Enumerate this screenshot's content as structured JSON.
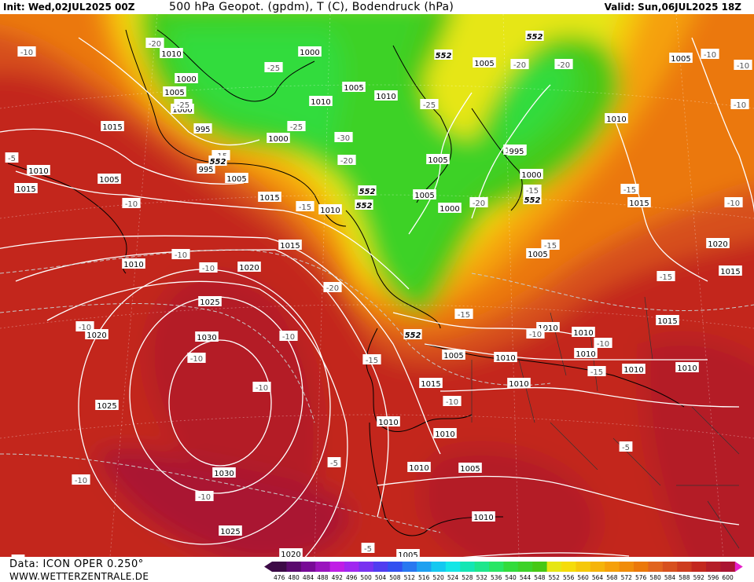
{
  "header": {
    "init": "Init: Wed,02JUL2025 00Z",
    "title": "500 hPa Geopot. (gpdm), T (C), Bodendruck (hPa)",
    "valid": "Valid: Sun,06JUL2025 18Z"
  },
  "footer": {
    "data_source": "Data: ICON OPER 0.250°",
    "website": "WWW.WETTERZENTRALE.DE"
  },
  "legend": {
    "values": [
      "476",
      "480",
      "484",
      "488",
      "492",
      "496",
      "500",
      "504",
      "508",
      "512",
      "516",
      "520",
      "524",
      "528",
      "532",
      "536",
      "540",
      "544",
      "548",
      "552",
      "556",
      "560",
      "564",
      "568",
      "572",
      "576",
      "580",
      "584",
      "588",
      "592",
      "596",
      "600"
    ],
    "colors": [
      "#3c0a46",
      "#5a0a6e",
      "#780a96",
      "#9a14be",
      "#c01ee6",
      "#a028f0",
      "#7832f0",
      "#503cf0",
      "#3250f0",
      "#2878f0",
      "#1ea0f0",
      "#14c8f0",
      "#14e6e6",
      "#14e6b4",
      "#1ee68c",
      "#28e664",
      "#32dc3c",
      "#3cd228",
      "#46c814",
      "#e6e614",
      "#f5dc0a",
      "#f5c80a",
      "#f5b40a",
      "#f5a00a",
      "#f08c0a",
      "#eb780a",
      "#e1641e",
      "#d7501e",
      "#cd3c1e",
      "#c3281e",
      "#b41e28",
      "#aa1432"
    ]
  },
  "map": {
    "isobar_labels": [
      {
        "t": "1010"
      },
      {
        "t": "1000"
      },
      {
        "t": "1005"
      },
      {
        "t": "1000"
      },
      {
        "t": "995"
      },
      {
        "t": "1015"
      },
      {
        "t": "1010"
      },
      {
        "t": "1015"
      },
      {
        "t": "1005"
      },
      {
        "t": "995"
      },
      {
        "t": "1000"
      },
      {
        "t": "1005"
      },
      {
        "t": "1000"
      },
      {
        "t": "1010"
      },
      {
        "t": "1005"
      },
      {
        "t": "1010"
      },
      {
        "t": "1015"
      },
      {
        "t": "1010"
      },
      {
        "t": "1015"
      },
      {
        "t": "1020"
      },
      {
        "t": "1025"
      },
      {
        "t": "1030"
      },
      {
        "t": "1020"
      },
      {
        "t": "1025"
      },
      {
        "t": "1030"
      },
      {
        "t": "1025"
      },
      {
        "t": "1020"
      },
      {
        "t": "1010"
      },
      {
        "t": "1005"
      },
      {
        "t": "1000"
      },
      {
        "t": "1005"
      },
      {
        "t": "1000"
      },
      {
        "t": "995"
      },
      {
        "t": "1000"
      },
      {
        "t": "1005"
      },
      {
        "t": "1010"
      },
      {
        "t": "1005"
      },
      {
        "t": "1010"
      },
      {
        "t": "1015"
      },
      {
        "t": "1005"
      },
      {
        "t": "1015"
      },
      {
        "t": "1020"
      },
      {
        "t": "1015"
      },
      {
        "t": "1005"
      },
      {
        "t": "1010"
      },
      {
        "t": "1010"
      },
      {
        "t": "1015"
      },
      {
        "t": "1010"
      },
      {
        "t": "1010"
      },
      {
        "t": "1010"
      },
      {
        "t": "1010"
      },
      {
        "t": "1005"
      },
      {
        "t": "1010"
      },
      {
        "t": "1010"
      },
      {
        "t": "1010"
      },
      {
        "t": "1010"
      },
      {
        "t": "1005"
      }
    ],
    "temperature_labels": [
      {
        "t": "-10"
      },
      {
        "t": "-20"
      },
      {
        "t": "-25"
      },
      {
        "t": "-25"
      },
      {
        "t": "-25"
      },
      {
        "t": "-30"
      },
      {
        "t": "-15"
      },
      {
        "t": "-20"
      },
      {
        "t": "-25"
      },
      {
        "t": "-20"
      },
      {
        "t": "-20"
      },
      {
        "t": "-20"
      },
      {
        "t": "-10"
      },
      {
        "t": "-10"
      },
      {
        "t": "-15"
      },
      {
        "t": "-10"
      },
      {
        "t": "-10"
      },
      {
        "t": "-20"
      },
      {
        "t": "-15"
      },
      {
        "t": "-15"
      },
      {
        "t": "-10"
      },
      {
        "t": "-10"
      },
      {
        "t": "-10"
      },
      {
        "t": "-10"
      },
      {
        "t": "-15"
      },
      {
        "t": "-10"
      },
      {
        "t": "-10"
      },
      {
        "t": "-5"
      },
      {
        "t": "-10"
      },
      {
        "t": "-5"
      },
      {
        "t": "-15"
      },
      {
        "t": "-15"
      },
      {
        "t": "-10"
      },
      {
        "t": "-15"
      },
      {
        "t": "-10"
      },
      {
        "t": "-15"
      },
      {
        "t": "-5"
      },
      {
        "t": "-5"
      },
      {
        "t": "-10"
      },
      {
        "t": "-10"
      },
      {
        "t": "-10"
      },
      {
        "t": "-5"
      }
    ],
    "geopotential_labels": [
      {
        "t": "552"
      },
      {
        "t": "552"
      },
      {
        "t": "552"
      },
      {
        "t": "552"
      },
      {
        "t": "552"
      },
      {
        "t": "552"
      },
      {
        "t": "552"
      }
    ]
  }
}
